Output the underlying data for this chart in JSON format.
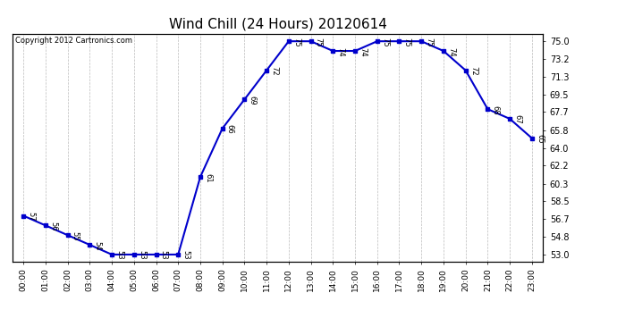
{
  "title": "Wind Chill (24 Hours) 20120614",
  "copyright_text": "Copyright 2012 Cartronics.com",
  "hours": [
    0,
    1,
    2,
    3,
    4,
    5,
    6,
    7,
    8,
    9,
    10,
    11,
    12,
    13,
    14,
    15,
    16,
    17,
    18,
    19,
    20,
    21,
    22,
    23
  ],
  "values": [
    57,
    56,
    55,
    54,
    53,
    53,
    53,
    53,
    61,
    66,
    69,
    72,
    75,
    75,
    74,
    74,
    75,
    75,
    75,
    74,
    72,
    68,
    67,
    65
  ],
  "yticks": [
    53.0,
    54.8,
    56.7,
    58.5,
    60.3,
    62.2,
    64.0,
    65.8,
    67.7,
    69.5,
    71.3,
    73.2,
    75.0
  ],
  "ylim": [
    52.3,
    75.8
  ],
  "xlim": [
    -0.5,
    23.5
  ],
  "line_color": "#0000cc",
  "marker_color": "#0000cc",
  "grid_color": "#bbbbbb",
  "background_color": "#ffffff",
  "title_fontsize": 11,
  "tick_fontsize": 6.5,
  "annotation_fontsize": 6.0,
  "copyright_fontsize": 6.0
}
